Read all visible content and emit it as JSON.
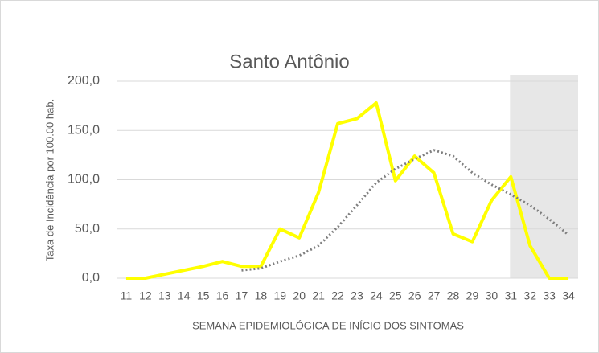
{
  "chart_data": {
    "type": "line",
    "title": "Santo Antônio",
    "x_label": "SEMANA EPIDEMIOLÓGICA DE INÍCIO DOS SINTOMAS",
    "y_label": "Taxa de Incidência por 100.00 hab.",
    "categories": [
      "11",
      "12",
      "13",
      "14",
      "15",
      "16",
      "17",
      "18",
      "19",
      "20",
      "21",
      "22",
      "23",
      "24",
      "25",
      "26",
      "27",
      "28",
      "29",
      "30",
      "31",
      "32",
      "33",
      "34"
    ],
    "series": [
      {
        "color": "#ffff00",
        "style": "solid",
        "values": [
          0,
          0,
          4,
          8,
          12,
          17,
          12,
          12,
          50,
          41,
          87,
          157,
          162,
          178,
          99,
          124,
          107,
          45,
          37,
          79,
          103,
          33,
          0,
          0
        ]
      },
      {
        "color": "#7f7f7f",
        "style": "dotted",
        "values": [
          null,
          null,
          null,
          null,
          null,
          null,
          8,
          10,
          17,
          23,
          33,
          52,
          74,
          97,
          111,
          121,
          130,
          124,
          107,
          95,
          85,
          74,
          60,
          44
        ]
      }
    ],
    "highlight": {
      "from": "31",
      "to": "34",
      "color": "#e7e7e7"
    },
    "ylim": [
      0,
      200
    ],
    "yticks": [
      {
        "value": 0,
        "label": "0,0"
      },
      {
        "value": 50,
        "label": "50,0"
      },
      {
        "value": 100,
        "label": "100,0"
      },
      {
        "value": 150,
        "label": "150,0"
      },
      {
        "value": 200,
        "label": "200,0"
      }
    ],
    "grid": true
  }
}
